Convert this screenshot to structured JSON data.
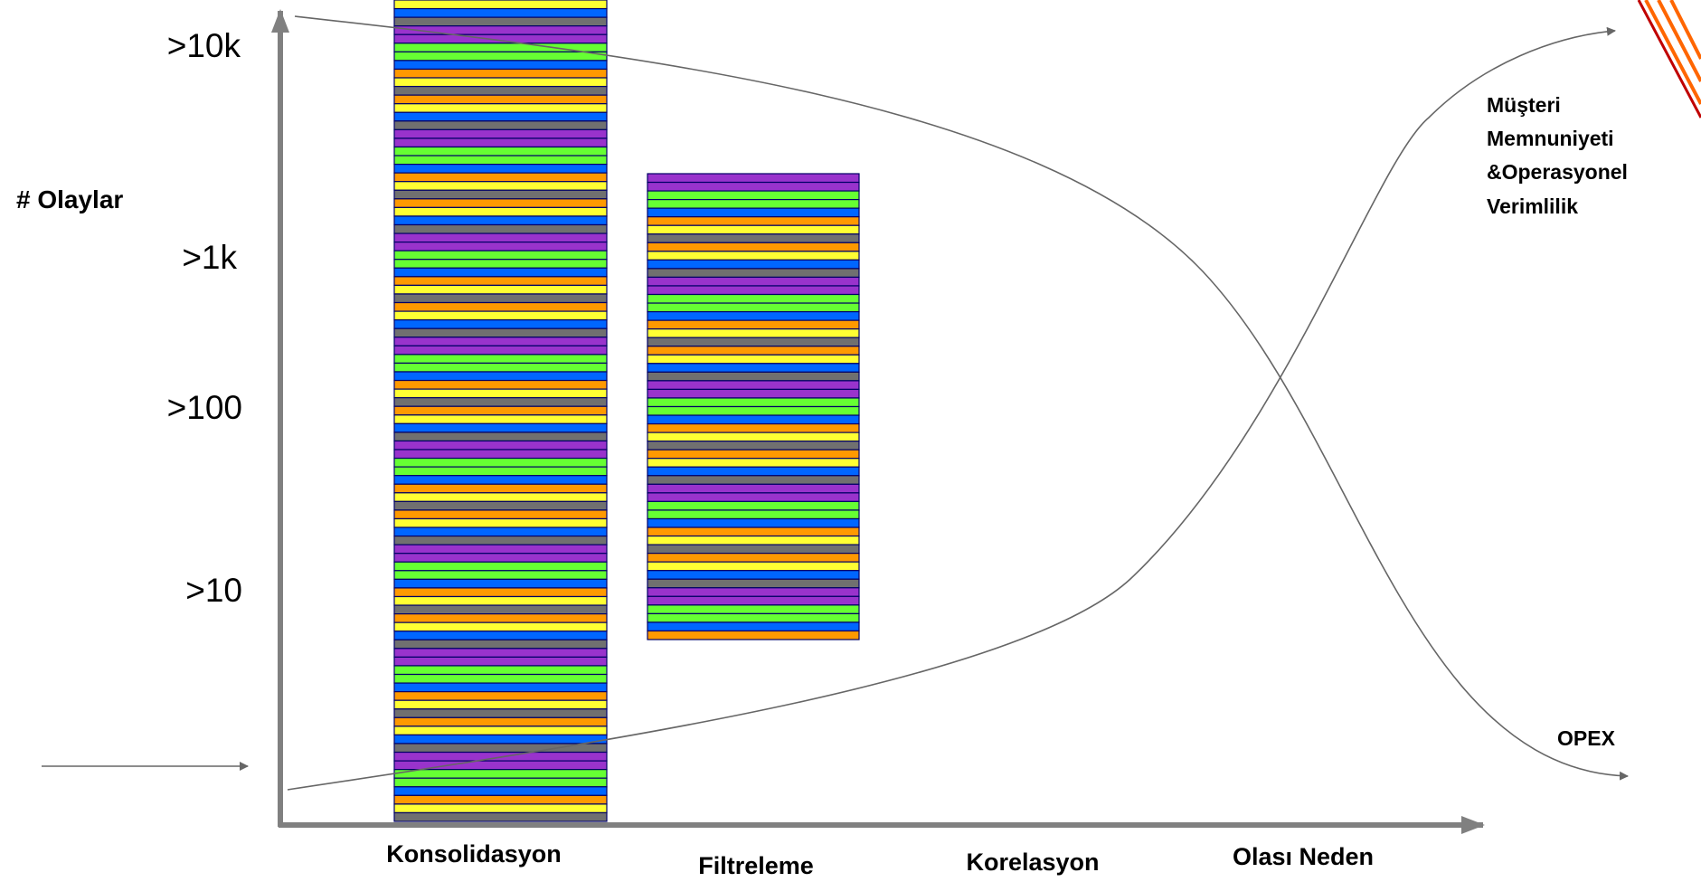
{
  "y_axis": {
    "label": "# Olaylar",
    "ticks": [
      ">10k",
      ">1k",
      ">100",
      ">10"
    ]
  },
  "categories": [
    "Konsolidasyon",
    "Filtreleme",
    "Korelasyon",
    "Olası Neden"
  ],
  "annotations": {
    "top": [
      "Müşteri",
      "Memnuniyeti",
      "&Operasyonel",
      "Verimlilik"
    ],
    "bottom": "OPEX"
  }
}
